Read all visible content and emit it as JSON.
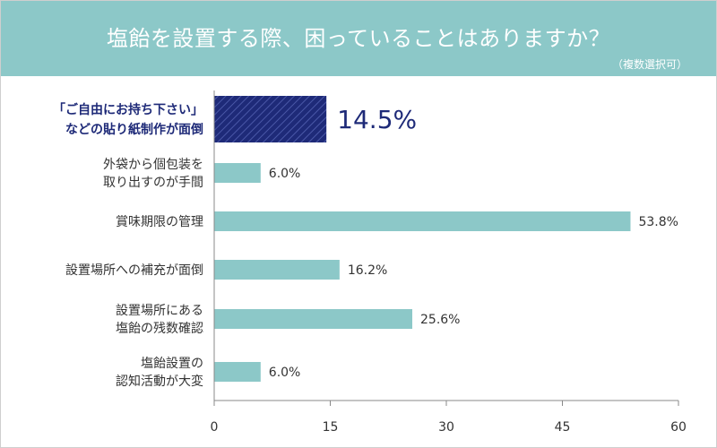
{
  "header": {
    "title": "塩飴を設置する際、困っていることはありますか？",
    "note": "（複数選択可）"
  },
  "colors": {
    "header_bg": "#8cc8c8",
    "bar": "#8cc8c8",
    "highlight_bar": "#1e2a78",
    "highlight_text": "#1e2a78",
    "text": "#333333",
    "axis": "#888888"
  },
  "chart_data": {
    "type": "bar",
    "orientation": "horizontal",
    "unit": "%",
    "categories": [
      [
        "「ご自由にお持ち下さい」",
        "などの貼り紙制作が面倒"
      ],
      [
        "外袋から個包装を",
        "取り出すのが手間"
      ],
      [
        "賞味期限の管理"
      ],
      [
        "設置場所への補充が面倒"
      ],
      [
        "設置場所にある",
        "塩飴の残数確認"
      ],
      [
        "塩飴設置の",
        "認知活動が大変"
      ]
    ],
    "values": [
      14.5,
      6.0,
      53.8,
      16.2,
      25.6,
      6.0
    ],
    "labels": [
      "14.5%",
      "6.0%",
      "53.8%",
      "16.2%",
      "25.6%",
      "6.0%"
    ],
    "highlight_index": 0,
    "xlim": [
      0,
      60
    ],
    "xticks": [
      "0",
      "15",
      "30",
      "45",
      "60"
    ],
    "grid": false
  }
}
